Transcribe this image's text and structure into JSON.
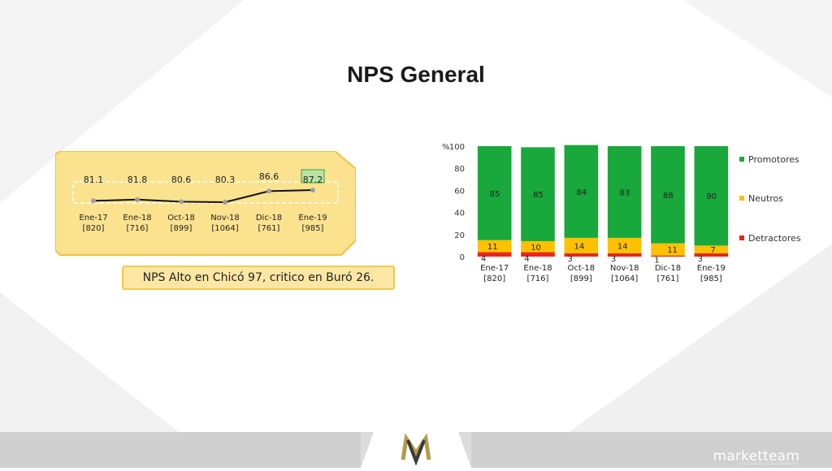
{
  "title": "NPS General",
  "callout": "NPS Alto en Chicó 97, critico en Buró 26.",
  "brand": {
    "name": "marketteam",
    "tagline": "CULTURA DE CONOCIMIENTO"
  },
  "colors": {
    "promotores": "#19a83b",
    "neutros": "#ffc000",
    "detractores": "#e8261e",
    "panel": "#fbe28e",
    "panel_border": "#f0c13f"
  },
  "chart_data": [
    {
      "type": "line",
      "categories": [
        "Ene-17 [820]",
        "Ene-18 [716]",
        "Oct-18 [899]",
        "Nov-18 [1064]",
        "Dic-18 [761]",
        "Ene-19 [985]"
      ],
      "category_lines": [
        [
          "Ene-17",
          "[820]"
        ],
        [
          "Ene-18",
          "[716]"
        ],
        [
          "Oct-18",
          "[899]"
        ],
        [
          "Nov-18",
          "[1064]"
        ],
        [
          "Dic-18",
          "[761]"
        ],
        [
          "Ene-19",
          "[985]"
        ]
      ],
      "values": [
        81.1,
        81.8,
        80.6,
        80.3,
        86.6,
        87.2
      ],
      "highlight_index": 5
    },
    {
      "type": "bar",
      "stacked": true,
      "categories": [
        "Ene-17 [820]",
        "Ene-18 [716]",
        "Oct-18 [899]",
        "Nov-18 [1064]",
        "Dic-18 [761]",
        "Ene-19 [985]"
      ],
      "category_lines": [
        [
          "Ene-17",
          "[820]"
        ],
        [
          "Ene-18",
          "[716]"
        ],
        [
          "Oct-18",
          "[899]"
        ],
        [
          "Nov-18",
          "[1064]"
        ],
        [
          "Dic-18",
          "[761]"
        ],
        [
          "Ene-19",
          "[985]"
        ]
      ],
      "ylabel": "%",
      "ylim": [
        0,
        100
      ],
      "yticks": [
        0,
        20,
        40,
        60,
        80,
        100
      ],
      "legend_position": "right",
      "series": [
        {
          "name": "Detractores",
          "color": "#e8261e",
          "values": [
            4,
            4,
            3,
            3,
            1,
            3
          ]
        },
        {
          "name": "Neutros",
          "color": "#ffc000",
          "values": [
            11,
            10,
            14,
            14,
            11,
            7
          ]
        },
        {
          "name": "Promotores",
          "color": "#19a83b",
          "values": [
            85,
            85,
            84,
            83,
            88,
            90
          ]
        }
      ],
      "legend_order": [
        "Promotores",
        "Neutros",
        "Detractores"
      ]
    }
  ]
}
